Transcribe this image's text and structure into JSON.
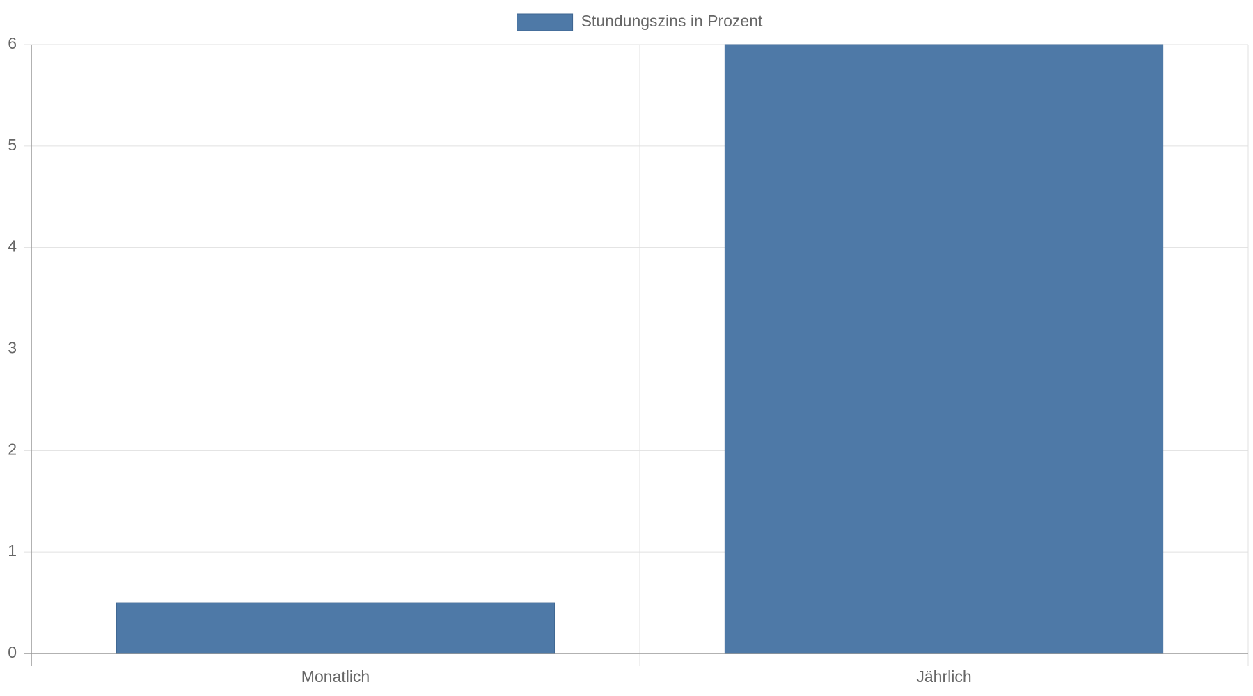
{
  "chart_data": {
    "type": "bar",
    "categories": [
      "Monatlich",
      "Jährlich"
    ],
    "series": [
      {
        "name": "Stundungszins in Prozent",
        "color": "#4e79a7",
        "values": [
          0.5,
          6
        ]
      }
    ],
    "ylim": [
      0,
      6
    ],
    "yticks": [
      0,
      1,
      2,
      3,
      4,
      5,
      6
    ],
    "grid": true,
    "legend": "top"
  }
}
